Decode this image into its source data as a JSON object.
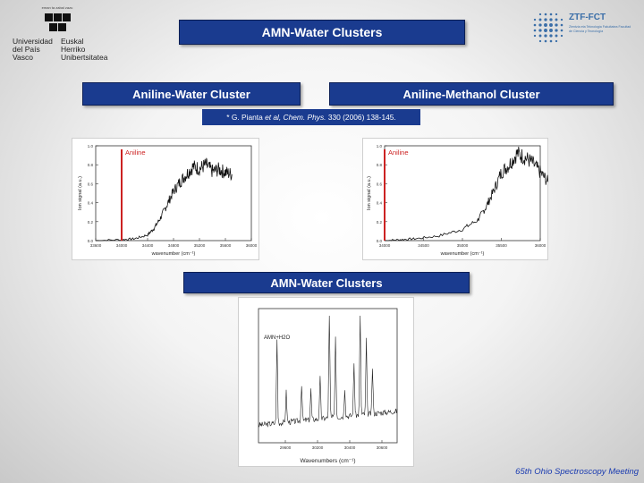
{
  "logos": {
    "left": {
      "small_text": "eman ta zabal zazu",
      "name_es": "Universidad del País Vasco",
      "name_eu": "Euskal Herriko Unibertsitatea",
      "icon": "upv-ehu-logo"
    },
    "right": {
      "name": "ZTF-FCT",
      "subtitle": "Zientzia eta Teknologia Fakultatea Facultad de Ciencia y Tecnología",
      "icon": "ztf-fct-logo"
    }
  },
  "slide": {
    "title": "AMN-Water Clusters",
    "left_heading": "Aniline-Water Cluster",
    "right_heading": "Aniline-Methanol Cluster",
    "reference_prefix": "* G. Pianta ",
    "reference_italic": "et al, Chem. Phys.",
    "reference_suffix": " 330 (2006) 138-145.",
    "amn_heading": "AMN-Water Clusters",
    "footer": "65th Ohio Spectroscopy Meeting"
  },
  "colors": {
    "banner_blue": "#1a3b8f",
    "marker_red": "#cc2222",
    "footer_blue": "#1a3bb0"
  },
  "chart_data": [
    {
      "type": "line",
      "name": "aniline-water spectrum",
      "annotation": "Aniline",
      "xlabel": "wavenumber (cm⁻¹)",
      "ylabel": "Ion signal (a.u.)",
      "x_ticks": [
        "33600",
        "34000",
        "34400",
        "34800",
        "35200",
        "35600",
        "36000"
      ],
      "y_ticks": [
        "0.0",
        "0.2",
        "0.4",
        "0.6",
        "0.8",
        "1.0"
      ],
      "xlim": [
        33600,
        36000
      ],
      "ylim": [
        0,
        1.0
      ],
      "marker_x": 34000,
      "points": [
        [
          33600,
          0.0
        ],
        [
          34000,
          0.01
        ],
        [
          34200,
          0.02
        ],
        [
          34400,
          0.06
        ],
        [
          34500,
          0.13
        ],
        [
          34600,
          0.24
        ],
        [
          34700,
          0.38
        ],
        [
          34800,
          0.52
        ],
        [
          34900,
          0.62
        ],
        [
          35000,
          0.7
        ],
        [
          35100,
          0.78
        ],
        [
          35200,
          0.76
        ],
        [
          35300,
          0.8
        ],
        [
          35400,
          0.73
        ],
        [
          35500,
          0.75
        ],
        [
          35600,
          0.72
        ],
        [
          35700,
          0.7
        ]
      ]
    },
    {
      "type": "line",
      "name": "aniline-methanol spectrum",
      "annotation": "Aniline",
      "xlabel": "wavenumber (cm⁻¹)",
      "ylabel": "Ion signal (a.u.)",
      "x_ticks": [
        "34000",
        "34500",
        "35000",
        "35500",
        "36000"
      ],
      "y_ticks": [
        "0.0",
        "0.2",
        "0.4",
        "0.6",
        "0.8",
        "1.0"
      ],
      "xlim": [
        34000,
        36000
      ],
      "ylim": [
        0,
        1.0
      ],
      "marker_x": 34000,
      "points": [
        [
          34000,
          0.0
        ],
        [
          34200,
          0.01
        ],
        [
          34400,
          0.02
        ],
        [
          34700,
          0.05
        ],
        [
          35000,
          0.12
        ],
        [
          35200,
          0.22
        ],
        [
          35300,
          0.35
        ],
        [
          35400,
          0.52
        ],
        [
          35500,
          0.72
        ],
        [
          35600,
          0.8
        ],
        [
          35700,
          0.92
        ],
        [
          35800,
          0.88
        ],
        [
          35900,
          0.82
        ],
        [
          36000,
          0.72
        ],
        [
          36100,
          0.62
        ]
      ]
    },
    {
      "type": "line",
      "name": "AMN-water spectrum",
      "annotation": "AMN+H2O",
      "xlabel": "Wavenumbers (cm⁻¹)",
      "x_ticks": [
        "29600",
        "30200",
        "30400",
        "30600"
      ],
      "xlim": [
        29900,
        30800
      ],
      "ylim": [
        0,
        1.0
      ],
      "peaks": [
        [
          30020,
          0.72
        ],
        [
          30080,
          0.26
        ],
        [
          30180,
          0.32
        ],
        [
          30240,
          0.26
        ],
        [
          30300,
          0.35
        ],
        [
          30360,
          0.92
        ],
        [
          30400,
          0.7
        ],
        [
          30460,
          0.25
        ],
        [
          30520,
          0.45
        ],
        [
          30560,
          0.9
        ],
        [
          30600,
          0.65
        ],
        [
          30640,
          0.4
        ]
      ]
    }
  ]
}
